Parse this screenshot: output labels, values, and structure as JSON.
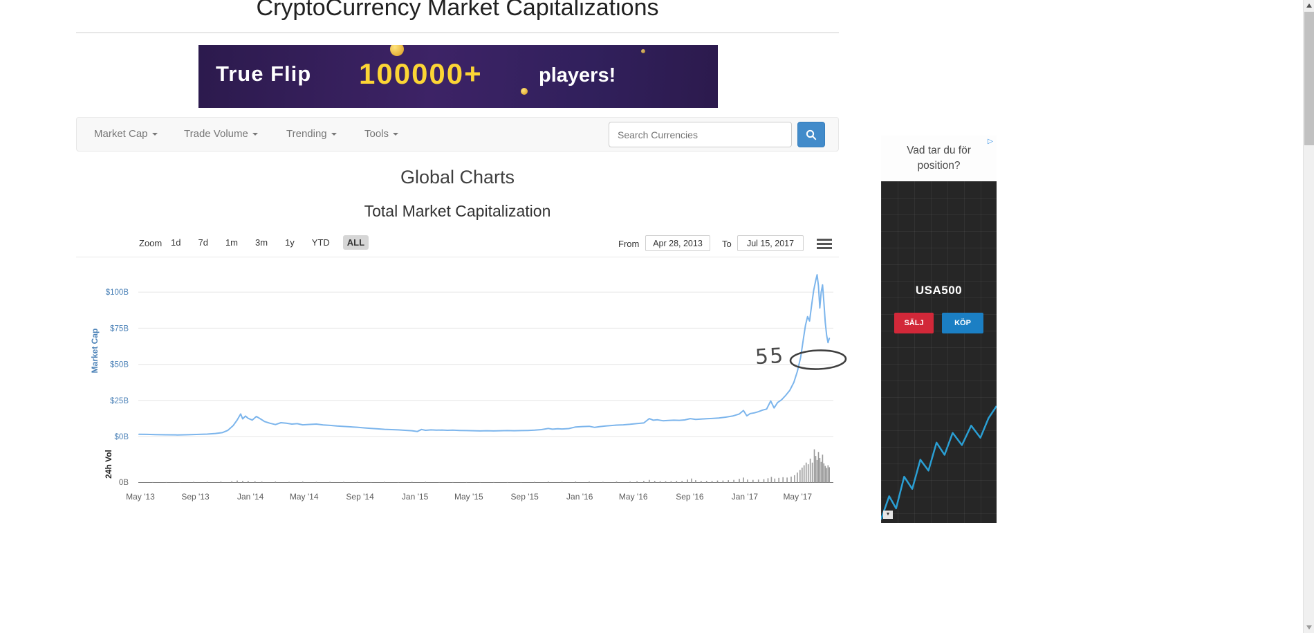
{
  "page": {
    "title": "CryptoCurrency Market Capitalizations"
  },
  "banner_ad": {
    "brand": "True Flip",
    "headline": "100000+",
    "tagline": "players!"
  },
  "navbar": {
    "items": [
      {
        "label": "Market Cap"
      },
      {
        "label": "Trade Volume"
      },
      {
        "label": "Trending"
      },
      {
        "label": "Tools"
      }
    ],
    "search_placeholder": "Search Currencies"
  },
  "headings": {
    "section": "Global Charts",
    "chart": "Total Market Capitalization"
  },
  "range_selector": {
    "zoom_label": "Zoom",
    "buttons": [
      "1d",
      "7d",
      "1m",
      "3m",
      "1y",
      "YTD",
      "ALL"
    ],
    "selected": "ALL",
    "from_label": "From",
    "from_value": "Apr 28, 2013",
    "to_label": "To",
    "to_value": "Jul 15, 2017"
  },
  "annotation": {
    "text": "55"
  },
  "side_ad": {
    "question": "Vad tar du för position?",
    "instrument": "USA500",
    "sell_label": "SÄLJ",
    "buy_label": "KÖP",
    "adchoices_icon": "▷",
    "caret_icon": "▼",
    "line_color": "#2a9fd4",
    "chart_points": [
      [
        0,
        97
      ],
      [
        7,
        78
      ],
      [
        13,
        88
      ],
      [
        20,
        62
      ],
      [
        27,
        72
      ],
      [
        34,
        48
      ],
      [
        41,
        57
      ],
      [
        48,
        34
      ],
      [
        55,
        44
      ],
      [
        62,
        26
      ],
      [
        70,
        36
      ],
      [
        78,
        20
      ],
      [
        86,
        30
      ],
      [
        93,
        14
      ],
      [
        100,
        4
      ]
    ]
  },
  "chart_data": {
    "type": "line",
    "title": "Total Market Capitalization",
    "x_range": {
      "from": "Apr 28, 2013",
      "to": "Jul 15, 2017",
      "months": 50.6
    },
    "y_axis": {
      "title": "Market Cap",
      "unit": "$B",
      "ticks": [
        {
          "label": "$0B",
          "v": 0
        },
        {
          "label": "$25B",
          "v": 25
        },
        {
          "label": "$50B",
          "v": 50
        },
        {
          "label": "$75B",
          "v": 75
        },
        {
          "label": "$100B",
          "v": 100
        }
      ],
      "label_color": "#4d83b8"
    },
    "x_axis": {
      "ticks": [
        {
          "label": "May '13",
          "t": 0.1
        },
        {
          "label": "Sep '13",
          "t": 4.13
        },
        {
          "label": "Jan '14",
          "t": 8.17
        },
        {
          "label": "May '14",
          "t": 12.1
        },
        {
          "label": "Sep '14",
          "t": 16.2
        },
        {
          "label": "Jan '15",
          "t": 20.23
        },
        {
          "label": "May '15",
          "t": 24.17
        },
        {
          "label": "Sep '15",
          "t": 28.27
        },
        {
          "label": "Jan '16",
          "t": 32.3
        },
        {
          "label": "May '16",
          "t": 36.23
        },
        {
          "label": "Sep '16",
          "t": 40.37
        },
        {
          "label": "Jan '17",
          "t": 44.4
        },
        {
          "label": "May '17",
          "t": 48.27
        }
      ]
    },
    "series": [
      {
        "name": "Market Cap",
        "color": "#7cb5ec",
        "unit": "$B",
        "points": [
          [
            0,
            1.6
          ],
          [
            0.6,
            1.5
          ],
          [
            1.2,
            1.35
          ],
          [
            2,
            1.2
          ],
          [
            2.8,
            1.1
          ],
          [
            3.6,
            1.25
          ],
          [
            4.4,
            1.5
          ],
          [
            5,
            1.7
          ],
          [
            5.6,
            2.1
          ],
          [
            6.1,
            2.7
          ],
          [
            6.5,
            4.2
          ],
          [
            6.9,
            7.5
          ],
          [
            7.2,
            11.5
          ],
          [
            7.45,
            15.6
          ],
          [
            7.6,
            12.2
          ],
          [
            7.8,
            14.2
          ],
          [
            8,
            12.6
          ],
          [
            8.3,
            11.4
          ],
          [
            8.6,
            13.9
          ],
          [
            8.9,
            12.2
          ],
          [
            9.2,
            10.4
          ],
          [
            9.6,
            9.2
          ],
          [
            10,
            8.3
          ],
          [
            10.4,
            9.6
          ],
          [
            10.8,
            9.2
          ],
          [
            11.2,
            8.6
          ],
          [
            11.6,
            8.9
          ],
          [
            12,
            8.1
          ],
          [
            12.5,
            8.4
          ],
          [
            13,
            8.6
          ],
          [
            13.5,
            8
          ],
          [
            14,
            7.7
          ],
          [
            14.5,
            7.3
          ],
          [
            15,
            7
          ],
          [
            15.5,
            6.7
          ],
          [
            16,
            6.4
          ],
          [
            16.5,
            6
          ],
          [
            17,
            5.6
          ],
          [
            17.5,
            5.3
          ],
          [
            18,
            5
          ],
          [
            18.5,
            4.8
          ],
          [
            19,
            4.6
          ],
          [
            19.5,
            4.3
          ],
          [
            20,
            4
          ],
          [
            20.4,
            3.5
          ],
          [
            20.7,
            4.9
          ],
          [
            21,
            4.3
          ],
          [
            21.4,
            4.6
          ],
          [
            21.8,
            4.4
          ],
          [
            22.2,
            4.5
          ],
          [
            22.6,
            4.3
          ],
          [
            23,
            4.4
          ],
          [
            23.5,
            4.2
          ],
          [
            24,
            4.1
          ],
          [
            24.5,
            4
          ],
          [
            25,
            3.9
          ],
          [
            25.5,
            4
          ],
          [
            26,
            3.9
          ],
          [
            26.5,
            4
          ],
          [
            27,
            4.1
          ],
          [
            27.5,
            4
          ],
          [
            28,
            4.1
          ],
          [
            28.5,
            4.2
          ],
          [
            29,
            4.4
          ],
          [
            29.5,
            4.8
          ],
          [
            30,
            5.6
          ],
          [
            30.3,
            5.1
          ],
          [
            30.7,
            5.4
          ],
          [
            31,
            5.2
          ],
          [
            31.5,
            5.5
          ],
          [
            32,
            6.6
          ],
          [
            32.5,
            6.9
          ],
          [
            33,
            7.1
          ],
          [
            33.4,
            6.3
          ],
          [
            33.8,
            6.9
          ],
          [
            34.2,
            7.3
          ],
          [
            34.6,
            7.6
          ],
          [
            35,
            7.9
          ],
          [
            35.5,
            8.1
          ],
          [
            36,
            8.5
          ],
          [
            36.5,
            9
          ],
          [
            37,
            9.4
          ],
          [
            37.4,
            12.4
          ],
          [
            37.7,
            11.3
          ],
          [
            38,
            11.6
          ],
          [
            38.4,
            10.9
          ],
          [
            38.8,
            11.1
          ],
          [
            39.2,
            11.3
          ],
          [
            39.6,
            11.2
          ],
          [
            40,
            11.5
          ],
          [
            40.4,
            12.4
          ],
          [
            40.8,
            11.9
          ],
          [
            41.2,
            12.1
          ],
          [
            41.6,
            12.3
          ],
          [
            42,
            12.5
          ],
          [
            42.5,
            12.8
          ],
          [
            43,
            13.4
          ],
          [
            43.5,
            14.2
          ],
          [
            44,
            15.6
          ],
          [
            44.3,
            18
          ],
          [
            44.55,
            14.3
          ],
          [
            44.8,
            15.9
          ],
          [
            45.1,
            16.4
          ],
          [
            45.4,
            17.2
          ],
          [
            45.7,
            18.3
          ],
          [
            46,
            19
          ],
          [
            46.3,
            24.6
          ],
          [
            46.55,
            19.8
          ],
          [
            46.8,
            23.5
          ],
          [
            47.1,
            25.5
          ],
          [
            47.4,
            28.5
          ],
          [
            47.7,
            32
          ],
          [
            48,
            37.5
          ],
          [
            48.25,
            45
          ],
          [
            48.5,
            55
          ],
          [
            48.7,
            68
          ],
          [
            48.85,
            77
          ],
          [
            49,
            83
          ],
          [
            49.15,
            80
          ],
          [
            49.3,
            91
          ],
          [
            49.45,
            101
          ],
          [
            49.6,
            108
          ],
          [
            49.7,
            112
          ],
          [
            49.8,
            104
          ],
          [
            49.9,
            89
          ],
          [
            50,
            100
          ],
          [
            50.1,
            105
          ],
          [
            50.2,
            93
          ],
          [
            50.3,
            79
          ],
          [
            50.4,
            70
          ],
          [
            50.5,
            65
          ],
          [
            50.6,
            68
          ]
        ]
      }
    ],
    "volume": {
      "axis_label": "24h Vol",
      "tick_label": "0B",
      "color": "#999999",
      "bars": [
        [
          1,
          1
        ],
        [
          2,
          1
        ],
        [
          3,
          1
        ],
        [
          4,
          2
        ],
        [
          5,
          2
        ],
        [
          6,
          3
        ],
        [
          6.8,
          4
        ],
        [
          7.2,
          6
        ],
        [
          7.6,
          5
        ],
        [
          8,
          5
        ],
        [
          8.5,
          4
        ],
        [
          9,
          3
        ],
        [
          10,
          3
        ],
        [
          11,
          2
        ],
        [
          12,
          3
        ],
        [
          13,
          2
        ],
        [
          14,
          2
        ],
        [
          15,
          2
        ],
        [
          16,
          2
        ],
        [
          17,
          1
        ],
        [
          18,
          2
        ],
        [
          19,
          1
        ],
        [
          20,
          2
        ],
        [
          21,
          2
        ],
        [
          22,
          1
        ],
        [
          23,
          1
        ],
        [
          24,
          1
        ],
        [
          25,
          1
        ],
        [
          26,
          1
        ],
        [
          27,
          1
        ],
        [
          28,
          1
        ],
        [
          29,
          2
        ],
        [
          30,
          3
        ],
        [
          31,
          2
        ],
        [
          32,
          3
        ],
        [
          33,
          3
        ],
        [
          34,
          2
        ],
        [
          35,
          3
        ],
        [
          36,
          3
        ],
        [
          36.5,
          4
        ],
        [
          37,
          5
        ],
        [
          37.4,
          8
        ],
        [
          37.8,
          5
        ],
        [
          38.2,
          4
        ],
        [
          38.6,
          4
        ],
        [
          39,
          4
        ],
        [
          39.4,
          5
        ],
        [
          39.8,
          5
        ],
        [
          40.2,
          9
        ],
        [
          40.5,
          12
        ],
        [
          40.8,
          7
        ],
        [
          41.2,
          5
        ],
        [
          41.6,
          5
        ],
        [
          42,
          5
        ],
        [
          42.4,
          6
        ],
        [
          42.8,
          6
        ],
        [
          43.2,
          7
        ],
        [
          43.6,
          8
        ],
        [
          44,
          11
        ],
        [
          44.3,
          15
        ],
        [
          44.6,
          9
        ],
        [
          45,
          8
        ],
        [
          45.4,
          9
        ],
        [
          45.8,
          10
        ],
        [
          46.1,
          13
        ],
        [
          46.35,
          17
        ],
        [
          46.6,
          12
        ],
        [
          46.9,
          14
        ],
        [
          47.2,
          16
        ],
        [
          47.5,
          15
        ],
        [
          47.8,
          18
        ],
        [
          48.05,
          22
        ],
        [
          48.25,
          30
        ],
        [
          48.45,
          38
        ],
        [
          48.6,
          45
        ],
        [
          48.75,
          52
        ],
        [
          48.9,
          60
        ],
        [
          49.05,
          55
        ],
        [
          49.2,
          72
        ],
        [
          49.35,
          60
        ],
        [
          49.5,
          100
        ],
        [
          49.6,
          80
        ],
        [
          49.7,
          68
        ],
        [
          49.8,
          92
        ],
        [
          49.9,
          74
        ],
        [
          50,
          62
        ],
        [
          50.1,
          84
        ],
        [
          50.2,
          58
        ],
        [
          50.3,
          50
        ],
        [
          50.4,
          44
        ],
        [
          50.5,
          52
        ],
        [
          50.6,
          46
        ]
      ]
    }
  }
}
